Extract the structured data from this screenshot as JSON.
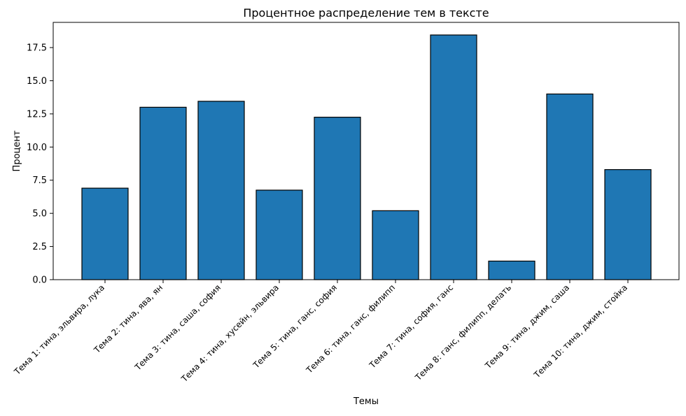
{
  "chart_data": {
    "type": "bar",
    "title": "Процентное распределение тем в тексте",
    "xlabel": "Темы",
    "ylabel": "Процент",
    "categories": [
      "Тема 1: тина, эльвира, лука",
      "Тема 2: тина, ява, ян",
      "Тема 3: тина, саша, софия",
      "Тема 4: тина, хусейн, эльвира",
      "Тема 5: тина, ганс, софия",
      "Тема 6: тина, ганс, филипп",
      "Тема 7: тина, софия, ганс",
      "Тема 8: ганс, филипп, делать",
      "Тема 9: тина, джим, саша",
      "Тема 10: тина, джим, стойка"
    ],
    "values": [
      6.9,
      13.0,
      13.45,
      6.75,
      12.25,
      5.2,
      18.45,
      1.4,
      14.0,
      8.3
    ],
    "ylim": [
      0,
      19.4
    ],
    "yticks": [
      "0.0",
      "2.5",
      "5.0",
      "7.5",
      "10.0",
      "12.5",
      "15.0",
      "17.5"
    ],
    "grid": false,
    "bar_color": "#1f77b4",
    "bar_edge_color": "#000000"
  }
}
